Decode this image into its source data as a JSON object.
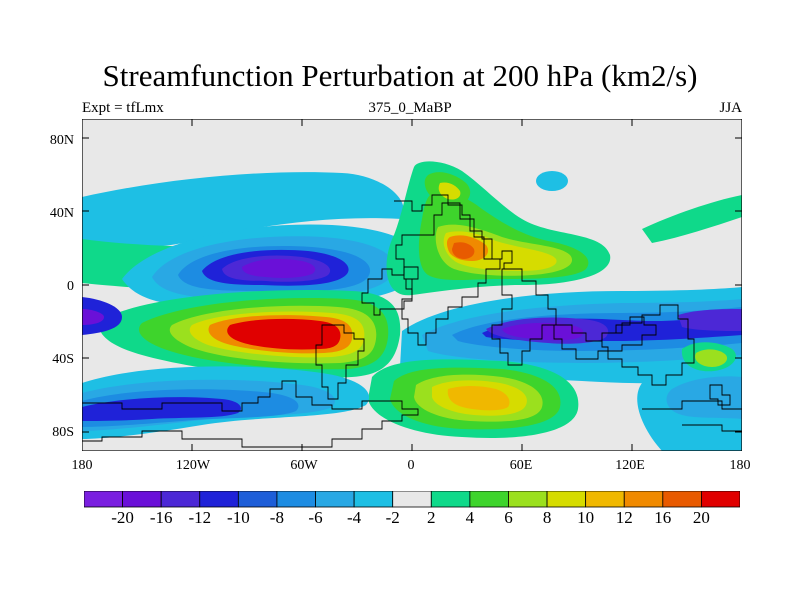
{
  "title": "Streamfunction Perturbation at 200 hPa (km2/s)",
  "left_label": "Expt = tfLmx",
  "center_label": "375_0_MaBP",
  "right_label": "JJA",
  "map": {
    "type": "filled-contour map",
    "projection": "cylindrical equidistant",
    "lon_range": [
      -180,
      180
    ],
    "lat_range": [
      -90,
      90
    ],
    "lat_ticks": [
      "80N",
      "40N",
      "0",
      "40S",
      "80S"
    ],
    "lon_ticks": [
      "180",
      "120W",
      "60W",
      "0",
      "60E",
      "120E",
      "180"
    ],
    "background_color": "#e8e8e8"
  },
  "colorbar": {
    "labels": [
      "-20",
      "-16",
      "-12",
      "-10",
      "-8",
      "-6",
      "-4",
      "-2",
      "2",
      "4",
      "6",
      "8",
      "10",
      "12",
      "16",
      "20"
    ],
    "colors": [
      "#7a1fe0",
      "#6a10d8",
      "#4c28d6",
      "#1f22d8",
      "#1e5ed8",
      "#1d8ce2",
      "#29a8e4",
      "#1ebfe4",
      "#e8e8e8",
      "#0fd98a",
      "#3ed42c",
      "#9be01e",
      "#d6dc00",
      "#f0b800",
      "#f08a00",
      "#e85a00",
      "#e00000"
    ]
  }
}
